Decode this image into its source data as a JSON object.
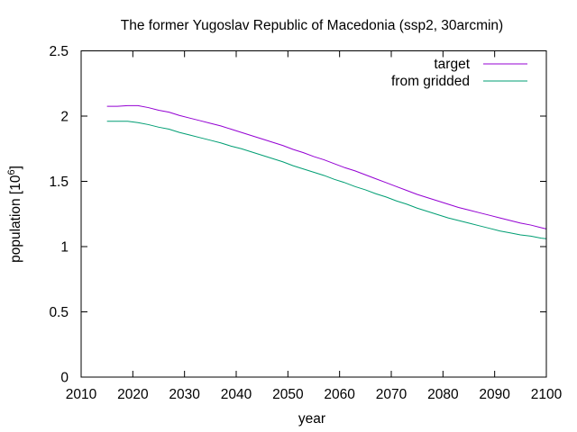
{
  "chart_data": {
    "type": "line",
    "title": "The former Yugoslav Republic of Macedonia (ssp2, 30arcmin)",
    "xlabel": "year",
    "ylabel_main": "population [10",
    "ylabel_exp": "6",
    "ylabel_close": "]",
    "xlim": [
      2010,
      2100
    ],
    "ylim": [
      0,
      2.5
    ],
    "xticks": [
      2010,
      2020,
      2030,
      2040,
      2050,
      2060,
      2070,
      2080,
      2090,
      2100
    ],
    "yticks": [
      0,
      0.5,
      1,
      1.5,
      2,
      2.5
    ],
    "xtick_labels": [
      "2010",
      "2020",
      "2030",
      "2040",
      "2050",
      "2060",
      "2070",
      "2080",
      "2090",
      "2100"
    ],
    "ytick_labels": [
      "0",
      "0.5",
      "1",
      "1.5",
      "2",
      "2.5"
    ],
    "legend_position": "top-right",
    "grid": false,
    "series": [
      {
        "name": "target",
        "color": "#9400d3",
        "x": [
          2015,
          2017,
          2019,
          2021,
          2023,
          2025,
          2027,
          2029,
          2031,
          2033,
          2035,
          2037,
          2039,
          2041,
          2043,
          2045,
          2047,
          2049,
          2051,
          2053,
          2055,
          2057,
          2059,
          2061,
          2063,
          2065,
          2067,
          2069,
          2071,
          2073,
          2075,
          2077,
          2079,
          2081,
          2083,
          2085,
          2087,
          2089,
          2091,
          2093,
          2095,
          2097,
          2099,
          2100
        ],
        "y": [
          2.075,
          2.075,
          2.08,
          2.08,
          2.065,
          2.045,
          2.03,
          2.005,
          1.985,
          1.965,
          1.945,
          1.925,
          1.9,
          1.875,
          1.85,
          1.825,
          1.8,
          1.775,
          1.745,
          1.72,
          1.69,
          1.665,
          1.635,
          1.605,
          1.58,
          1.55,
          1.52,
          1.49,
          1.46,
          1.43,
          1.4,
          1.375,
          1.35,
          1.325,
          1.3,
          1.28,
          1.26,
          1.24,
          1.22,
          1.2,
          1.18,
          1.165,
          1.145,
          1.135
        ]
      },
      {
        "name": "from gridded",
        "color": "#009e73",
        "x": [
          2015,
          2017,
          2019,
          2021,
          2023,
          2025,
          2027,
          2029,
          2031,
          2033,
          2035,
          2037,
          2039,
          2041,
          2043,
          2045,
          2047,
          2049,
          2051,
          2053,
          2055,
          2057,
          2059,
          2061,
          2063,
          2065,
          2067,
          2069,
          2071,
          2073,
          2075,
          2077,
          2079,
          2081,
          2083,
          2085,
          2087,
          2089,
          2091,
          2093,
          2095,
          2097,
          2099,
          2100
        ],
        "y": [
          1.96,
          1.96,
          1.96,
          1.95,
          1.935,
          1.915,
          1.9,
          1.875,
          1.855,
          1.835,
          1.815,
          1.795,
          1.77,
          1.75,
          1.725,
          1.7,
          1.675,
          1.65,
          1.62,
          1.595,
          1.57,
          1.545,
          1.515,
          1.49,
          1.46,
          1.435,
          1.405,
          1.38,
          1.35,
          1.325,
          1.295,
          1.27,
          1.245,
          1.22,
          1.2,
          1.18,
          1.16,
          1.14,
          1.12,
          1.105,
          1.09,
          1.08,
          1.065,
          1.06
        ]
      }
    ]
  }
}
